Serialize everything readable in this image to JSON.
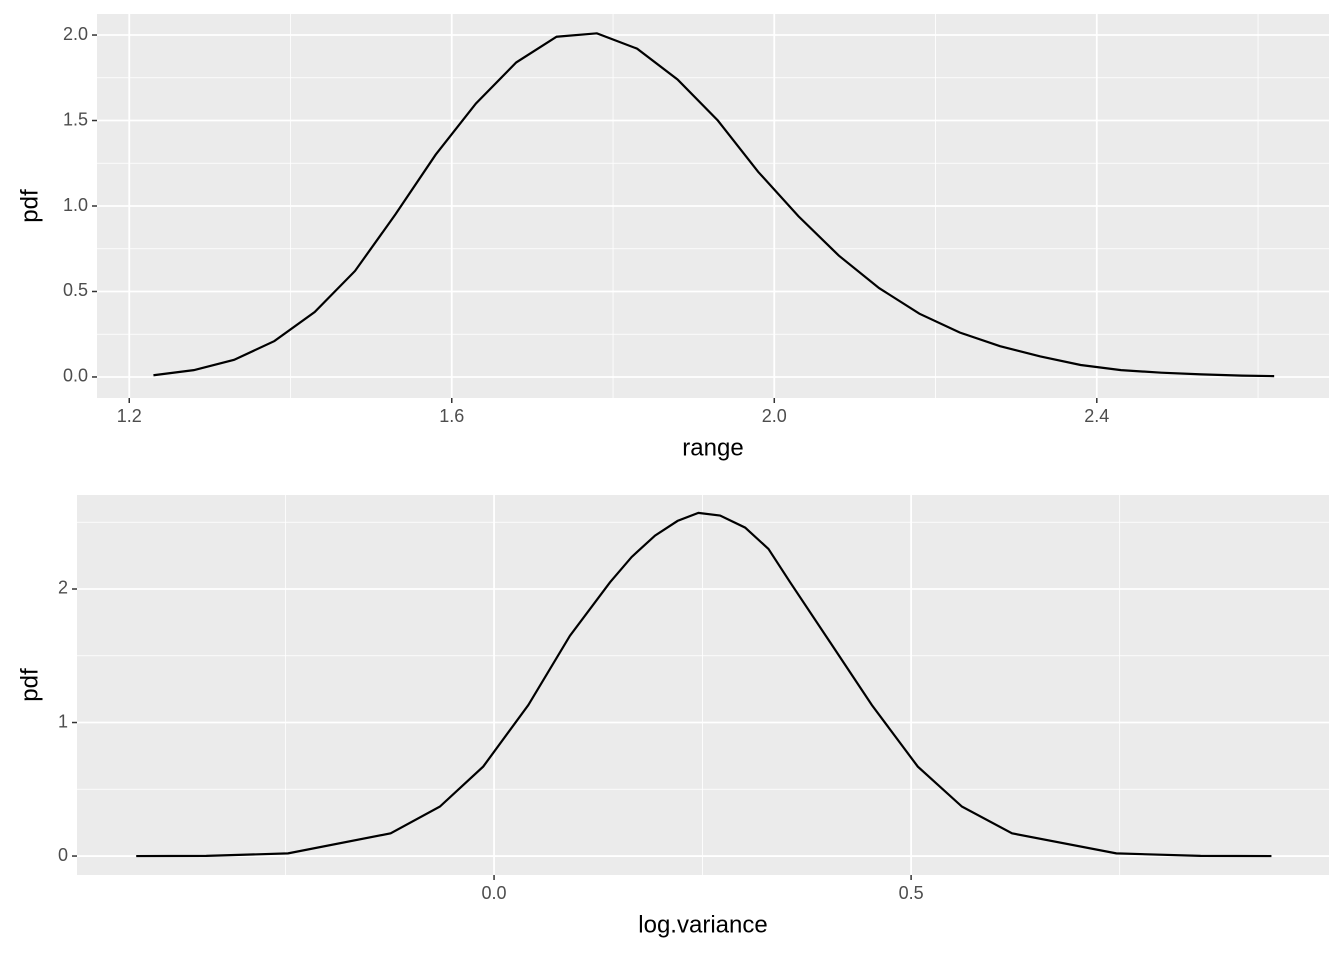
{
  "chart_data": [
    {
      "type": "line",
      "x_label": "range",
      "y_label": "pdf",
      "color": "#000000",
      "grid": true,
      "x": [
        1.23,
        1.28,
        1.33,
        1.38,
        1.43,
        1.48,
        1.53,
        1.58,
        1.63,
        1.68,
        1.73,
        1.78,
        1.83,
        1.88,
        1.93,
        1.98,
        2.03,
        2.08,
        2.13,
        2.18,
        2.23,
        2.28,
        2.33,
        2.38,
        2.43,
        2.48,
        2.53,
        2.58,
        2.62
      ],
      "values": [
        0.01,
        0.04,
        0.1,
        0.21,
        0.38,
        0.62,
        0.95,
        1.3,
        1.6,
        1.84,
        1.99,
        2.01,
        1.92,
        1.74,
        1.5,
        1.2,
        0.94,
        0.71,
        0.52,
        0.37,
        0.26,
        0.18,
        0.12,
        0.07,
        0.04,
        0.025,
        0.015,
        0.008,
        0.005
      ],
      "xlim": [
        1.16,
        2.688
      ],
      "xticks": [
        1.2,
        1.6,
        {
          "value": 2.0,
          "label": "2.0"
        },
        2.4
      ],
      "ylim": [
        -0.123,
        2.123
      ],
      "yticks": [
        {
          "value": 0,
          "label": "0.0"
        },
        0.5,
        {
          "value": 1,
          "label": "1.0"
        },
        1.5,
        {
          "value": 2,
          "label": "2.0"
        }
      ]
    },
    {
      "type": "line",
      "x_label": "log.variance",
      "y_label": "pdf",
      "color": "#000000",
      "grid": true,
      "x": [
        -0.429,
        -0.345,
        -0.247,
        -0.124,
        -0.065,
        -0.013,
        0.041,
        0.091,
        0.139,
        0.165,
        0.193,
        0.22,
        0.245,
        0.271,
        0.301,
        0.329,
        0.355,
        0.403,
        0.453,
        0.508,
        0.561,
        0.621,
        0.746,
        0.847,
        0.932
      ],
      "values": [
        0,
        0.001,
        0.02,
        0.17,
        0.37,
        0.67,
        1.13,
        1.65,
        2.05,
        2.24,
        2.4,
        2.51,
        2.57,
        2.55,
        2.46,
        2.3,
        2.05,
        1.6,
        1.13,
        0.67,
        0.37,
        0.17,
        0.02,
        0.001,
        0
      ],
      "xlim": [
        -0.5,
        1.001
      ],
      "xticks": [
        {
          "value": 0,
          "label": "0.0"
        },
        0.5
      ],
      "ylim": [
        -0.142,
        2.704
      ],
      "yticks": [
        0,
        1,
        2
      ]
    }
  ]
}
